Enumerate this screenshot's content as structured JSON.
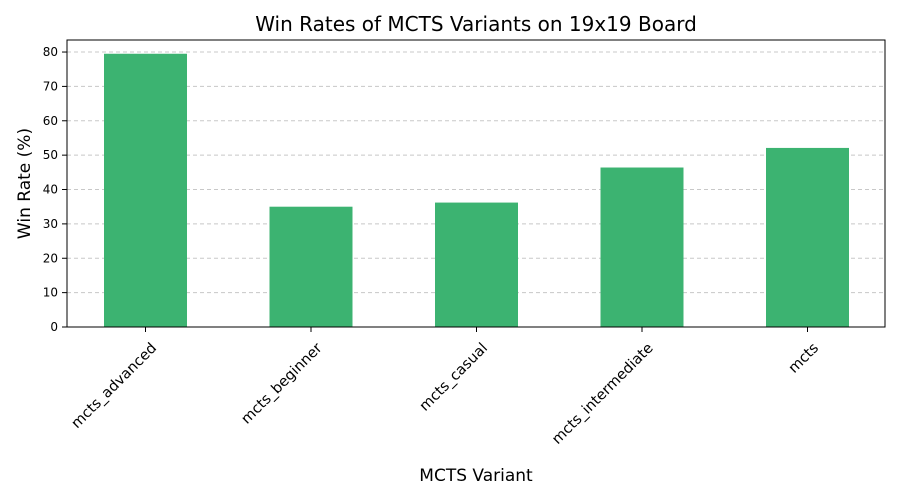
{
  "chart_data": {
    "type": "bar",
    "title": "Win Rates of MCTS Variants on 19x19 Board",
    "xlabel": "MCTS Variant",
    "ylabel": "Win Rate (%)",
    "categories": [
      "mcts_advanced",
      "mcts_beginner",
      "mcts_casual",
      "mcts_intermediate",
      "mcts"
    ],
    "values": [
      79.5,
      35.0,
      36.2,
      46.4,
      52.1
    ],
    "ylim": [
      0,
      83.5
    ],
    "yticks": [
      0,
      10,
      20,
      30,
      40,
      50,
      60,
      70,
      80
    ],
    "bar_color": "#3cb371",
    "grid": "y-dashed",
    "legend": "none"
  }
}
